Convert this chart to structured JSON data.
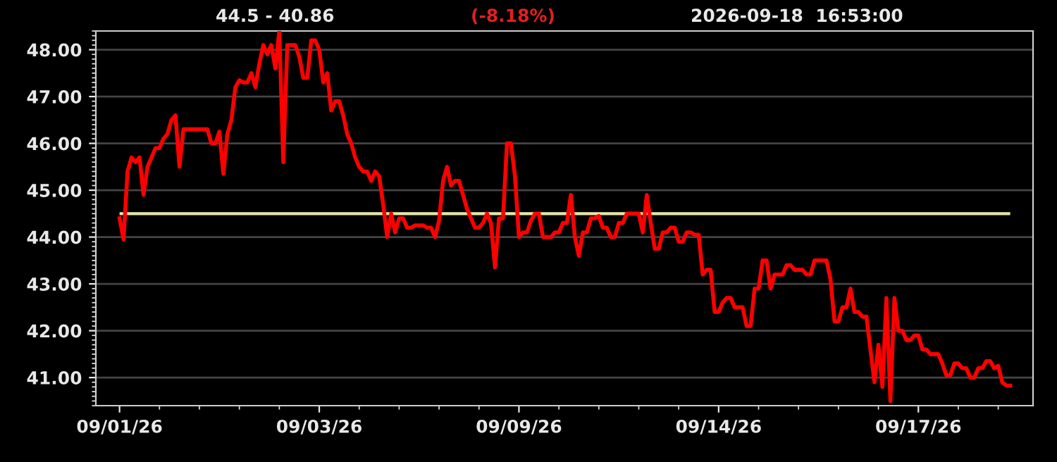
{
  "chart_data": {
    "type": "line",
    "title": "44.5 - 40.86",
    "subtitle": "(-8.18%)",
    "annotations": [
      "2026-09-18  16:53:00"
    ],
    "categories": [
      "09/01/26",
      null,
      null,
      null,
      null,
      null,
      null,
      null,
      null,
      null,
      null,
      null,
      null,
      null,
      null,
      null,
      null,
      null,
      null,
      null,
      null,
      null,
      null,
      null,
      null,
      null,
      null,
      null,
      null,
      null,
      null,
      null,
      null,
      null,
      null,
      null,
      null,
      null,
      null,
      null,
      null,
      null,
      null,
      null,
      null,
      null,
      null,
      null,
      null,
      null,
      "09/03/26",
      null,
      null,
      null,
      null,
      null,
      null,
      null,
      null,
      null,
      null,
      null,
      null,
      null,
      null,
      null,
      null,
      null,
      null,
      null,
      null,
      null,
      null,
      null,
      null,
      null,
      null,
      null,
      null,
      null,
      null,
      null,
      null,
      null,
      null,
      null,
      null,
      null,
      null,
      null,
      null,
      null,
      null,
      null,
      null,
      null,
      null,
      null,
      null,
      null,
      "09/09/26",
      null,
      null,
      null,
      null,
      null,
      null,
      null,
      null,
      null,
      null,
      null,
      null,
      null,
      null,
      null,
      null,
      null,
      null,
      null,
      null,
      null,
      null,
      null,
      null,
      null,
      null,
      null,
      null,
      null,
      null,
      null,
      null,
      null,
      null,
      null,
      null,
      null,
      null,
      null,
      null,
      null,
      null,
      null,
      null,
      null,
      null,
      null,
      null,
      null,
      "09/14/26",
      null,
      null,
      null,
      null,
      null,
      null,
      null,
      null,
      null,
      null,
      null,
      null,
      null,
      null,
      null,
      null,
      null,
      null,
      null,
      null,
      null,
      null,
      null,
      null,
      null,
      null,
      null,
      null,
      null,
      null,
      null,
      null,
      null,
      null,
      null,
      null,
      null,
      null,
      null,
      null,
      null,
      null,
      null,
      null,
      null,
      null,
      null,
      null,
      null,
      "09/17/26",
      null,
      null,
      null,
      null,
      null,
      null,
      null,
      null,
      null,
      null,
      null,
      null,
      null,
      null,
      null,
      null,
      null,
      null,
      null,
      null,
      null,
      null,
      null
    ],
    "series": [
      {
        "color": "#ff0000",
        "values": [
          44.4,
          43.95,
          45.4,
          45.7,
          45.6,
          45.7,
          44.9,
          45.5,
          45.7,
          45.9,
          45.9,
          46.1,
          46.2,
          46.5,
          46.6,
          45.5,
          46.3,
          46.3,
          46.3,
          46.3,
          46.3,
          46.3,
          46.3,
          46.0,
          46.0,
          46.25,
          45.35,
          46.2,
          46.5,
          47.2,
          47.35,
          47.3,
          47.3,
          47.5,
          47.2,
          47.7,
          48.1,
          47.9,
          48.1,
          47.6,
          48.4,
          45.6,
          48.1,
          48.1,
          48.1,
          47.85,
          47.4,
          47.4,
          48.2,
          48.2,
          48.0,
          47.3,
          47.5,
          46.7,
          46.9,
          46.9,
          46.6,
          46.2,
          46.0,
          45.7,
          45.5,
          45.4,
          45.4,
          45.2,
          45.4,
          45.3,
          44.7,
          44.0,
          44.5,
          44.1,
          44.4,
          44.4,
          44.2,
          44.2,
          44.25,
          44.25,
          44.25,
          44.2,
          44.2,
          44.0,
          44.35,
          45.2,
          45.5,
          45.1,
          45.2,
          45.2,
          44.9,
          44.6,
          44.4,
          44.2,
          44.2,
          44.3,
          44.5,
          44.3,
          43.35,
          44.4,
          44.4,
          46.0,
          46.0,
          45.3,
          44.0,
          44.1,
          44.1,
          44.35,
          44.5,
          44.5,
          44.0,
          44.0,
          44.0,
          44.1,
          44.1,
          44.3,
          44.3,
          44.9,
          44.0,
          43.6,
          44.1,
          44.1,
          44.4,
          44.4,
          44.45,
          44.2,
          44.2,
          44.0,
          44.0,
          44.3,
          44.3,
          44.5,
          44.5,
          44.5,
          44.5,
          44.1,
          44.9,
          44.3,
          43.75,
          43.75,
          44.1,
          44.1,
          44.2,
          44.2,
          43.9,
          43.9,
          44.1,
          44.1,
          44.05,
          44.05,
          43.2,
          43.3,
          43.3,
          42.4,
          42.4,
          42.6,
          42.7,
          42.7,
          42.5,
          42.5,
          42.5,
          42.1,
          42.1,
          42.9,
          42.9,
          43.5,
          43.5,
          42.9,
          43.2,
          43.2,
          43.2,
          43.4,
          43.4,
          43.3,
          43.3,
          43.3,
          43.2,
          43.2,
          43.5,
          43.5,
          43.5,
          43.5,
          43.1,
          42.2,
          42.2,
          42.5,
          42.5,
          42.9,
          42.4,
          42.4,
          42.3,
          42.3,
          41.6,
          40.9,
          41.7,
          40.8,
          42.7,
          40.5,
          42.7,
          42.0,
          42.0,
          41.8,
          41.8,
          41.9,
          41.9,
          41.6,
          41.6,
          41.5,
          41.5,
          41.5,
          41.3,
          41.05,
          41.05,
          41.3,
          41.3,
          41.2,
          41.2,
          41.0,
          41.0,
          41.2,
          41.2,
          41.35,
          41.35,
          41.2,
          41.25,
          40.9,
          40.83,
          40.83
        ]
      }
    ],
    "ylim": [
      40.4,
      48.4
    ],
    "yticks": [
      {
        "value": 41,
        "label": "41.00"
      },
      {
        "value": 42,
        "label": "42.00"
      },
      {
        "value": 43,
        "label": "43.00"
      },
      {
        "value": 44,
        "label": "44.00"
      },
      {
        "value": 45,
        "label": "45.00"
      },
      {
        "value": 46,
        "label": "46.00"
      },
      {
        "value": 47,
        "label": "47.00"
      },
      {
        "value": 48,
        "label": "48.00"
      }
    ],
    "ref_lines": [
      {
        "axis": "y",
        "value": 44.5,
        "color": "#e6e8a8"
      }
    ],
    "grid": "y",
    "line_style": "solid",
    "marker": "none"
  }
}
